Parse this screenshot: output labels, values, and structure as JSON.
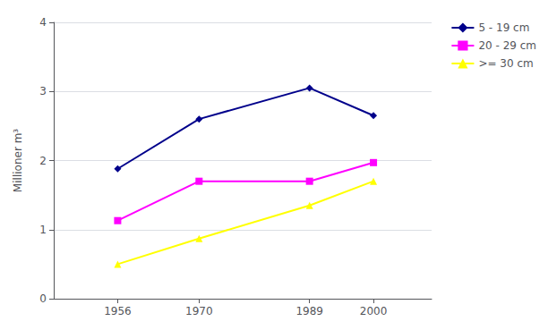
{
  "chart_data": {
    "type": "line",
    "x": [
      1956,
      1970,
      1989,
      2000
    ],
    "series": [
      {
        "name": "5 - 19 cm",
        "values": [
          1.88,
          2.6,
          3.05,
          2.65
        ],
        "color": "#00008B",
        "marker": "diamond"
      },
      {
        "name": "20 - 29 cm",
        "values": [
          1.13,
          1.7,
          1.7,
          1.97
        ],
        "color": "#FF00FF",
        "marker": "square"
      },
      {
        "name": ">= 30 cm",
        "values": [
          0.5,
          0.87,
          1.35,
          1.7
        ],
        "color": "#FFFF00",
        "marker": "triangle"
      }
    ],
    "ylabel": "Millioner m³",
    "ylim": [
      0,
      4
    ],
    "yticks": [
      0,
      1,
      2,
      3,
      4
    ],
    "xlim": [
      1945,
      2010
    ],
    "xticks": [
      1956,
      1970,
      1989,
      2000
    ],
    "grid": true,
    "legend": "right"
  }
}
